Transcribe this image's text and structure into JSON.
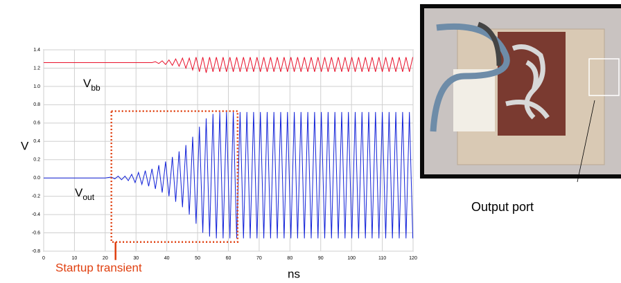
{
  "chart_data": {
    "type": "line",
    "x_label": "ns",
    "y_label": "V",
    "x": [
      0,
      20,
      22.0,
      23.1,
      24.2,
      25.3,
      26.4,
      27.5,
      28.6,
      29.7,
      30.8,
      31.9,
      33.0,
      34.1,
      35.2,
      36.3,
      37.4,
      38.5,
      39.6,
      40.7,
      41.8,
      42.9,
      44.0,
      45.1,
      46.2,
      47.3,
      48.4,
      49.5,
      50.6,
      51.7,
      52.8,
      53.9,
      55.0,
      56.1,
      57.2,
      58.3,
      59.4,
      60.5,
      61.6,
      62.7,
      63.8,
      64.9,
      66.0,
      67.1,
      68.2,
      69.3,
      70.4,
      71.5,
      72.6,
      73.7,
      74.8,
      75.9,
      77.0,
      78.1,
      79.2,
      80.3,
      81.4,
      82.5,
      83.6,
      84.7,
      85.8,
      86.9,
      88.0,
      89.1,
      90.2,
      91.3,
      92.4,
      93.5,
      94.6,
      95.7,
      96.8,
      97.9,
      99.0,
      100.1,
      101.2,
      102.3,
      103.4,
      104.5,
      105.6,
      106.7,
      107.8,
      108.9,
      110.0,
      111.1,
      112.2,
      113.3,
      114.4,
      115.5,
      116.6,
      117.7,
      118.8,
      119.9
    ],
    "series": [
      {
        "label": [
          "V",
          "bb"
        ],
        "color": "#e8102a",
        "values": [
          1.26,
          1.26,
          1.26,
          1.26,
          1.26,
          1.26,
          1.26,
          1.26,
          1.26,
          1.26,
          1.26,
          1.26,
          1.26,
          1.26,
          1.26,
          1.27,
          1.25,
          1.28,
          1.24,
          1.29,
          1.23,
          1.3,
          1.22,
          1.31,
          1.2,
          1.31,
          1.18,
          1.32,
          1.16,
          1.32,
          1.15,
          1.32,
          1.16,
          1.32,
          1.16,
          1.32,
          1.16,
          1.32,
          1.16,
          1.32,
          1.16,
          1.32,
          1.16,
          1.32,
          1.16,
          1.32,
          1.16,
          1.32,
          1.16,
          1.32,
          1.16,
          1.32,
          1.16,
          1.32,
          1.16,
          1.32,
          1.16,
          1.32,
          1.16,
          1.32,
          1.16,
          1.32,
          1.16,
          1.32,
          1.16,
          1.32,
          1.16,
          1.32,
          1.16,
          1.32,
          1.16,
          1.32,
          1.16,
          1.32,
          1.16,
          1.32,
          1.16,
          1.32,
          1.16,
          1.32,
          1.16,
          1.32,
          1.16,
          1.32,
          1.16,
          1.32,
          1.16,
          1.32,
          1.16,
          1.32,
          1.16,
          1.32
        ]
      },
      {
        "label": [
          "V",
          "out"
        ],
        "color": "#1020d8",
        "values": [
          0,
          0,
          0.01,
          -0.01,
          0.02,
          -0.02,
          0.02,
          -0.03,
          0.04,
          -0.05,
          0.06,
          -0.07,
          0.08,
          -0.09,
          0.1,
          -0.12,
          0.14,
          -0.16,
          0.18,
          -0.2,
          0.23,
          -0.26,
          0.29,
          -0.32,
          0.36,
          -0.4,
          0.45,
          -0.5,
          0.56,
          -0.6,
          0.65,
          -0.64,
          0.7,
          -0.66,
          0.72,
          -0.66,
          0.72,
          -0.66,
          0.72,
          -0.66,
          0.72,
          -0.66,
          0.72,
          -0.66,
          0.72,
          -0.66,
          0.72,
          -0.66,
          0.72,
          -0.66,
          0.72,
          -0.66,
          0.72,
          -0.66,
          0.72,
          -0.66,
          0.72,
          -0.66,
          0.72,
          -0.66,
          0.72,
          -0.66,
          0.72,
          -0.66,
          0.72,
          -0.66,
          0.72,
          -0.66,
          0.72,
          -0.66,
          0.72,
          -0.66,
          0.72,
          -0.66,
          0.72,
          -0.66,
          0.72,
          -0.66,
          0.72,
          -0.66,
          0.72,
          -0.66,
          0.72,
          -0.66,
          0.72,
          -0.66,
          0.72,
          -0.66,
          0.72,
          -0.66,
          0.72,
          -0.66
        ]
      }
    ],
    "xlim": [
      0,
      120
    ],
    "xticks": [
      0,
      10,
      20,
      30,
      40,
      50,
      60,
      70,
      80,
      90,
      100,
      110,
      120
    ],
    "ylim": [
      -0.8,
      1.4
    ],
    "yticks": [
      -0.8,
      -0.6,
      -0.4,
      -0.2,
      {
        "value": 0,
        "label": "0.0"
      },
      0.2,
      0.4,
      0.6,
      0.8,
      {
        "value": 1,
        "label": "1.0"
      },
      1.2,
      1.4
    ],
    "grid": true,
    "annotation": {
      "text": "Startup transient",
      "color": "#e04010",
      "box_x": [
        22,
        63
      ],
      "box_y": [
        -0.7,
        0.73
      ]
    }
  },
  "photo": {
    "caption": "Output port"
  }
}
